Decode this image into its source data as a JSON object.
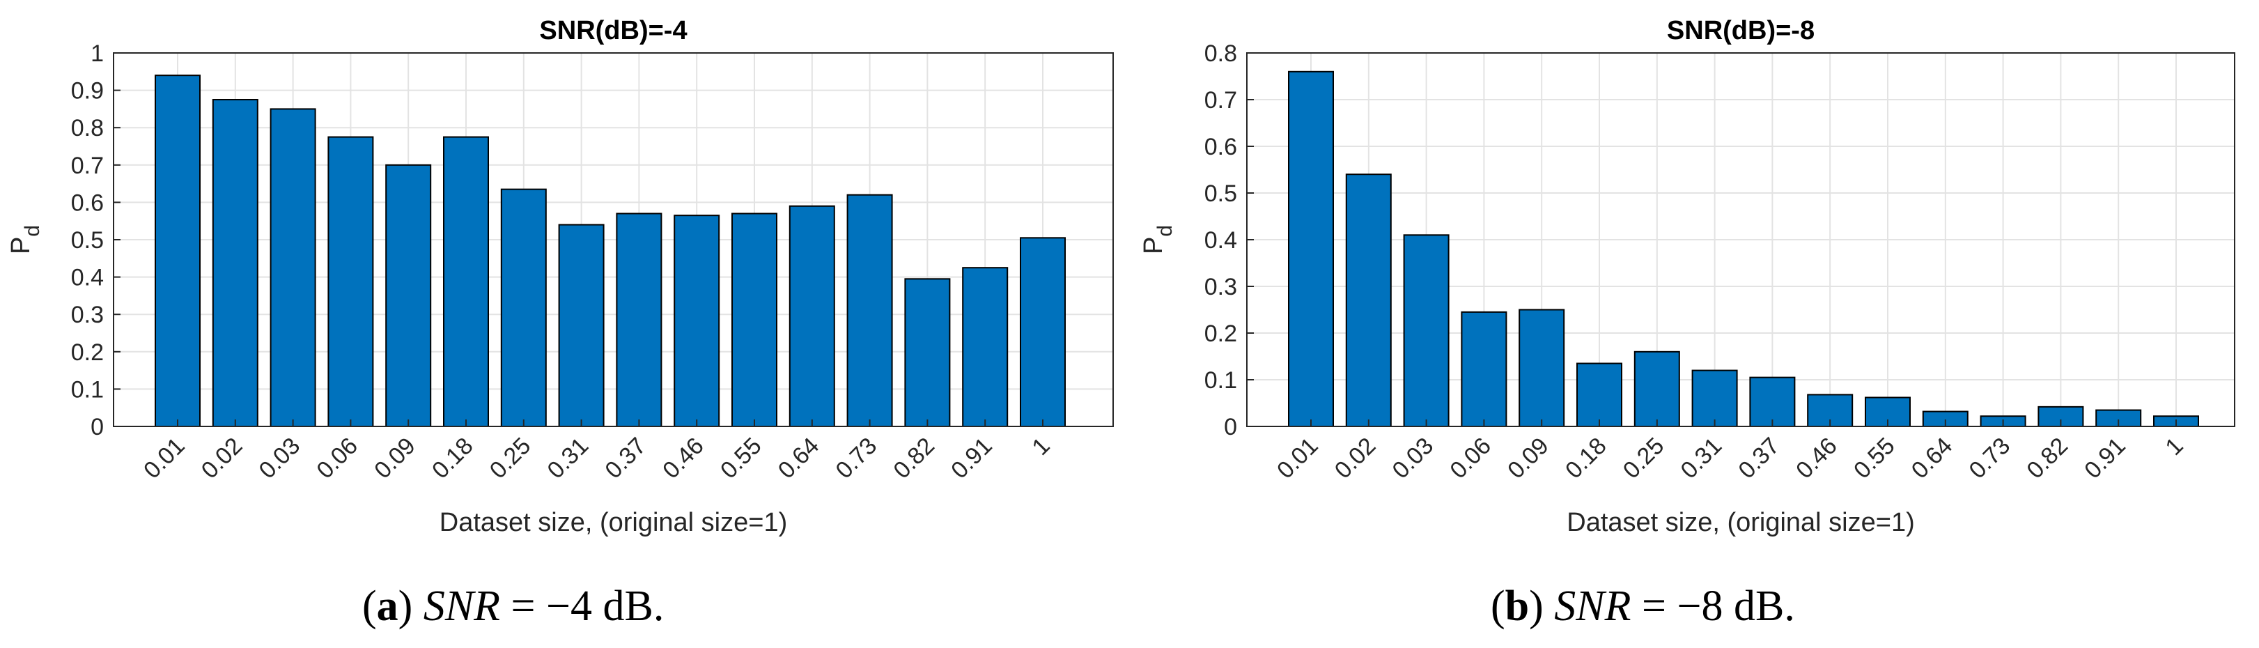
{
  "chart_data": [
    {
      "type": "bar",
      "title": "SNR(dB)=-4",
      "xlabel": "Dataset size, (original size=1)",
      "ylabel": "P",
      "ylabel_subscript": "d",
      "categories": [
        "0.01",
        "0.02",
        "0.03",
        "0.06",
        "0.09",
        "0.18",
        "0.25",
        "0.31",
        "0.37",
        "0.46",
        "0.55",
        "0.64",
        "0.73",
        "0.82",
        "0.91",
        "1"
      ],
      "values": [
        0.94,
        0.875,
        0.85,
        0.775,
        0.7,
        0.775,
        0.635,
        0.54,
        0.57,
        0.565,
        0.57,
        0.59,
        0.62,
        0.395,
        0.425,
        0.505
      ],
      "ylim": [
        0,
        1
      ],
      "yticks": [
        "0",
        "0.1",
        "0.2",
        "0.3",
        "0.4",
        "0.5",
        "0.6",
        "0.7",
        "0.8",
        "0.9",
        "1"
      ],
      "grid": true,
      "bar_color": "#0072bd",
      "caption": {
        "label": "(a)",
        "math": "SNR",
        "rest": " = −4 dB."
      }
    },
    {
      "type": "bar",
      "title": "SNR(dB)=-8",
      "xlabel": "Dataset size, (original size=1)",
      "ylabel": "P",
      "ylabel_subscript": "d",
      "categories": [
        "0.01",
        "0.02",
        "0.03",
        "0.06",
        "0.09",
        "0.18",
        "0.25",
        "0.31",
        "0.37",
        "0.46",
        "0.55",
        "0.64",
        "0.73",
        "0.82",
        "0.91",
        "1"
      ],
      "values": [
        0.76,
        0.54,
        0.41,
        0.245,
        0.25,
        0.135,
        0.16,
        0.12,
        0.105,
        0.068,
        0.062,
        0.032,
        0.022,
        0.042,
        0.035,
        0.022
      ],
      "ylim": [
        0,
        0.8
      ],
      "yticks": [
        "0",
        "0.1",
        "0.2",
        "0.3",
        "0.4",
        "0.5",
        "0.6",
        "0.7",
        "0.8"
      ],
      "grid": true,
      "bar_color": "#0072bd",
      "caption": {
        "label": "(b)",
        "math": "SNR",
        "rest": " = −8 dB."
      }
    }
  ]
}
